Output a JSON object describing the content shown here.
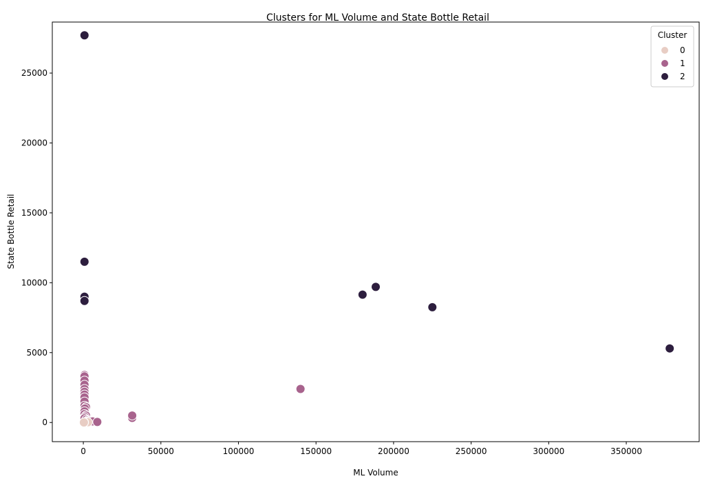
{
  "chart_data": {
    "type": "scatter",
    "title": "Clusters for ML Volume and State Bottle Retail",
    "xlabel": "ML Volume",
    "ylabel": "State Bottle Retail",
    "xlim": [
      -20000,
      397000
    ],
    "ylim": [
      -1370,
      28650
    ],
    "xticks": [
      0,
      50000,
      100000,
      150000,
      200000,
      250000,
      300000,
      350000
    ],
    "yticks": [
      0,
      5000,
      10000,
      15000,
      20000,
      25000
    ],
    "grid": false,
    "legend": {
      "title": "Cluster",
      "placement": "top-right"
    },
    "colors": {
      "0": "#e8cdc4",
      "1": "#a8638d",
      "2": "#2d1e3e"
    },
    "series": [
      {
        "name": "0",
        "points": [
          [
            750,
            0
          ],
          [
            1000,
            30
          ],
          [
            1750,
            60
          ],
          [
            3000,
            20
          ],
          [
            500,
            10
          ],
          [
            375,
            5
          ]
        ]
      },
      {
        "name": "1",
        "points": [
          [
            750,
            3400
          ],
          [
            750,
            3300
          ],
          [
            750,
            3000
          ],
          [
            750,
            2700
          ],
          [
            750,
            2400
          ],
          [
            750,
            2200
          ],
          [
            750,
            2000
          ],
          [
            750,
            1800
          ],
          [
            750,
            1500
          ],
          [
            750,
            1200
          ],
          [
            1750,
            1100
          ],
          [
            1000,
            1000
          ],
          [
            750,
            800
          ],
          [
            750,
            600
          ],
          [
            1750,
            500
          ],
          [
            1000,
            400
          ],
          [
            750,
            300
          ],
          [
            1750,
            200
          ],
          [
            3000,
            150
          ],
          [
            4000,
            120
          ],
          [
            5000,
            100
          ],
          [
            6000,
            80
          ],
          [
            9000,
            40
          ],
          [
            31500,
            330
          ],
          [
            31500,
            500
          ],
          [
            140000,
            2400
          ]
        ]
      },
      {
        "name": "2",
        "points": [
          [
            750,
            27700
          ],
          [
            750,
            11500
          ],
          [
            750,
            9000
          ],
          [
            750,
            8700
          ],
          [
            180000,
            9150
          ],
          [
            188500,
            9700
          ],
          [
            225000,
            8250
          ],
          [
            378000,
            5300
          ]
        ]
      }
    ]
  }
}
